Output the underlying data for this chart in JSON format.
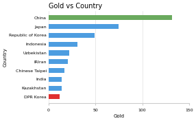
{
  "title": "Gold vs Country",
  "xlabel": "Gold",
  "ylabel": "Country",
  "categories": [
    "DPR Korea",
    "Kazakhstan",
    "India",
    "Chinese Taipei",
    "IRIran",
    "Uzbekistan",
    "Indonesia",
    "Republic of Korea",
    "Japan",
    "China"
  ],
  "values": [
    12,
    14,
    14,
    17,
    21,
    22,
    31,
    49,
    75,
    132
  ],
  "colors": [
    "#e03030",
    "#4d9de0",
    "#4d9de0",
    "#4d9de0",
    "#4d9de0",
    "#4d9de0",
    "#4d9de0",
    "#4d9de0",
    "#4d9de0",
    "#6aaa5e"
  ],
  "xlim": [
    0,
    150
  ],
  "xticks": [
    0,
    50,
    100,
    150
  ],
  "background_color": "#ffffff",
  "bar_height": 0.55,
  "title_fontsize": 7,
  "tick_fontsize": 4.5,
  "axis_label_fontsize": 5
}
